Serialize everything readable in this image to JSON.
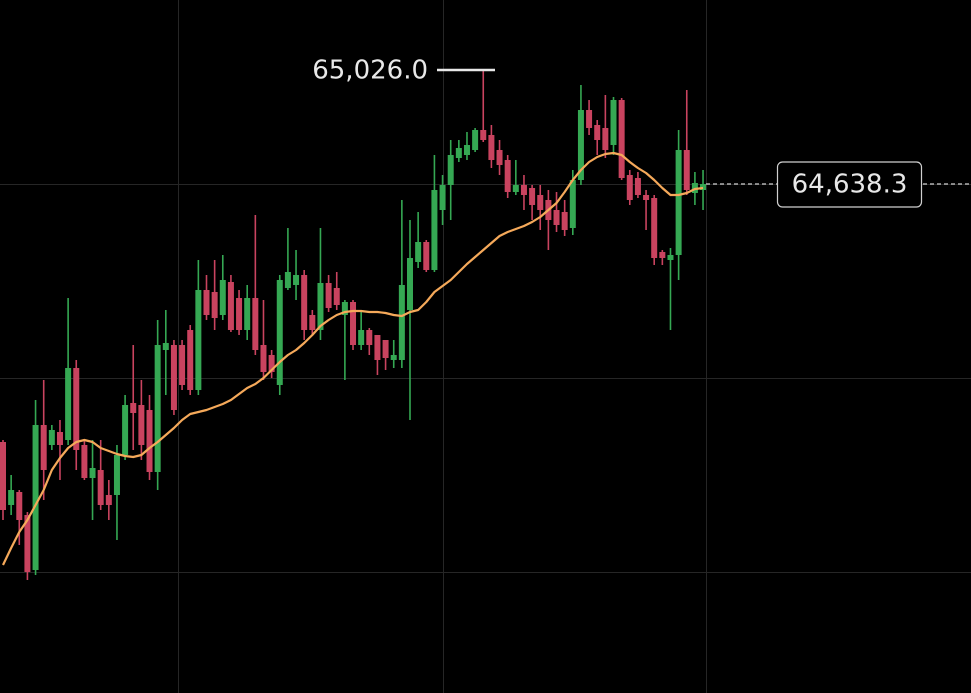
{
  "chart_data": {
    "type": "candlestick",
    "ylim": [
      62907.8,
      65264
    ],
    "up_color": "#35a853",
    "down_color": "#c9435f",
    "open": [
      63761.2,
      63547,
      63591.2,
      63513,
      63326,
      63819,
      63751,
      63795.2,
      63768,
      64012.8,
      63751,
      63638.8,
      63666,
      63581,
      63581,
      63717,
      63893.8,
      63887,
      63870,
      63659.2,
      64074,
      64091,
      64091,
      64142,
      63938,
      64278,
      64271.2,
      64193,
      64305.2,
      64250.8,
      64142,
      64250.8,
      64091,
      64057,
      63955,
      64284.8,
      64295,
      64329,
      64193,
      64142,
      64301.8,
      64284.8,
      64193,
      64237.2,
      64091,
      64142,
      64125,
      64108,
      64040,
      64040,
      64210,
      64373.2,
      64441.2,
      64346,
      64550,
      64635,
      64726.8,
      64737,
      64754,
      64822,
      64805,
      64754,
      64720,
      64611.2,
      64635,
      64624.8,
      64601,
      64584,
      64550,
      64543.2,
      64488.8,
      64652,
      64890,
      64839,
      64828.8,
      64771,
      64924,
      64669,
      64658.8,
      64601,
      64590.8,
      64407.2,
      64380,
      64397,
      64754,
      64607.8,
      64618
    ],
    "high": [
      63768,
      63649,
      63598,
      63523.2,
      63904,
      63972,
      63819,
      63836,
      64250.8,
      64040,
      63768,
      63768,
      63768,
      63632,
      63751,
      63921,
      64091,
      63972,
      63921,
      64176,
      64210,
      64108,
      64108,
      64159,
      64380,
      64329,
      64380,
      64397,
      64329,
      64278,
      64295,
      64533,
      64244,
      64074,
      64329,
      64488.8,
      64414,
      64346,
      64210,
      64488.8,
      64329,
      64339.2,
      64244,
      64244,
      64210,
      64148.8,
      64108,
      64108,
      64108,
      64584,
      64516,
      64543.2,
      64448,
      64737,
      64669,
      64788,
      64788,
      64815.2,
      64828.8,
      65026,
      64839,
      64788,
      64737,
      64720,
      64669,
      64635,
      64635,
      64618,
      64611.2,
      64584,
      64686,
      64975,
      64924,
      64856,
      64941,
      64934.2,
      64930.8,
      64686,
      64679.2,
      64618,
      64601,
      64414,
      64420.8,
      64822,
      64958,
      64679.2,
      64686
    ],
    "low": [
      63496,
      63513,
      63411,
      63292,
      63309,
      63564,
      63734,
      63632,
      63751,
      63666,
      63632,
      63496,
      63530,
      63496,
      63428,
      63700,
      63734,
      63700,
      63632,
      63598,
      63921,
      63853,
      63938,
      63921,
      63921,
      64176,
      64142,
      64176,
      64135.2,
      64125,
      64108,
      64057,
      63972,
      63978.8,
      63921,
      64278,
      64244,
      64108,
      64125,
      64108,
      64203.2,
      64210,
      63972,
      64074,
      64074,
      64057,
      63989,
      64006,
      64012.8,
      64012.8,
      63836,
      64352.8,
      64339.2,
      64339.2,
      64499,
      64516,
      64713.2,
      64720,
      64747.2,
      64781.2,
      64692.8,
      64669,
      64590.8,
      64601,
      64550,
      64516,
      64482,
      64414,
      64475.2,
      64461.6,
      64465,
      64635,
      64805,
      64737,
      64726.8,
      64737,
      64652,
      64567,
      64590.8,
      64482,
      64363,
      64363,
      64142,
      64312,
      64601,
      64567,
      64550
    ],
    "close": [
      63530,
      63598,
      63496,
      63319.2,
      63819,
      63666,
      63802,
      63751,
      64012.8,
      63734,
      63638.8,
      63672.8,
      63547,
      63547,
      63717,
      63887,
      63859.8,
      63751,
      63659.2,
      64091,
      64097.8,
      63870,
      63955,
      63938,
      64278,
      64193,
      64182.8,
      64312,
      64142,
      64142,
      64250.8,
      64074,
      63999.2,
      63999.2,
      64312,
      64339.2,
      64329,
      64142,
      64142,
      64301.8,
      64216.8,
      64227,
      64237.2,
      64091,
      64142,
      64091,
      64040,
      64046.8,
      64057,
      64295,
      64386.8,
      64441.2,
      64346,
      64618,
      64635,
      64737,
      64760.8,
      64771,
      64822,
      64788,
      64720,
      64703,
      64611.2,
      64635,
      64601,
      64567,
      64550,
      64516,
      64499,
      64482,
      64652,
      64890,
      64828.8,
      64788,
      64754,
      64924,
      64658.8,
      64584,
      64601,
      64584,
      64386.8,
      64386.8,
      64397,
      64754,
      64618,
      64641.8,
      64638.3
    ],
    "ma": {
      "color": "#f5a95a",
      "values": [
        63343,
        63400.8,
        63455.2,
        63496,
        63547,
        63598,
        63666,
        63706.8,
        63740.8,
        63761.2,
        63768,
        63761.2,
        63740.8,
        63730.6,
        63720.4,
        63713.6,
        63710.2,
        63717,
        63740.8,
        63761.2,
        63785,
        63808.8,
        63836,
        63856.4,
        63863.2,
        63870,
        63880.2,
        63890.4,
        63904,
        63924.4,
        63944.8,
        63958.4,
        63978.8,
        64006,
        64033.2,
        64057,
        64074,
        64097.8,
        64125,
        64155.6,
        64176,
        64193,
        64203.2,
        64206.6,
        64206.6,
        64203.2,
        64203.2,
        64199.8,
        64193,
        64189.6,
        64203.2,
        64210,
        64237.2,
        64271.2,
        64291.6,
        64312,
        64339.2,
        64366.4,
        64390.2,
        64414,
        64437.8,
        64461.6,
        64475.2,
        64485.4,
        64495.6,
        64509.2,
        64526.2,
        64550,
        64573.8,
        64611.2,
        64652,
        64686,
        64713.2,
        64730.2,
        64740.4,
        64743.8,
        64737,
        64713.2,
        64692.8,
        64675.8,
        64652,
        64624.8,
        64601,
        64601,
        64607.8,
        64621.4,
        64624.8
      ]
    },
    "high_marker": {
      "label": "65,026.0",
      "value": 65026
    },
    "last_price": {
      "label": "64,638.3",
      "value": 64638.3
    }
  }
}
